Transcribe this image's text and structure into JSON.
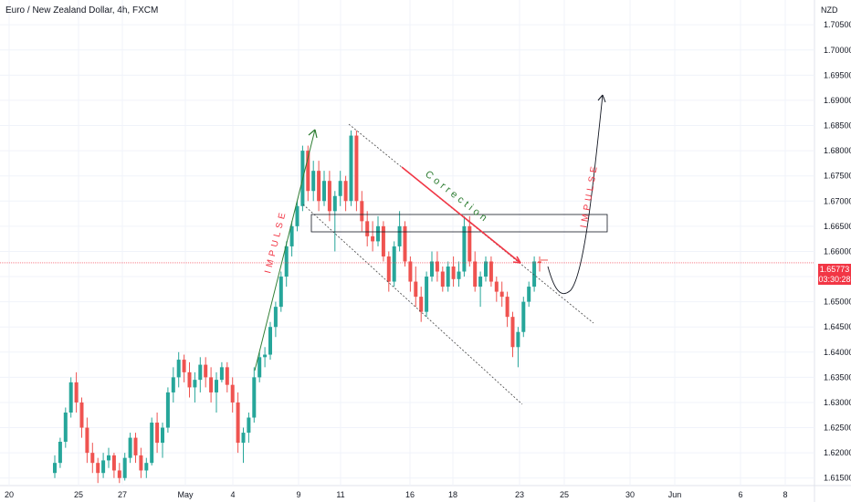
{
  "header": {
    "title": "Euro / New Zealand Dollar, 4h, FXCM"
  },
  "price_axis": {
    "currency": "NZD"
  },
  "last_price": {
    "value": "1.65773",
    "countdown": "03:30:28"
  },
  "colors": {
    "up": "#26a69a",
    "down": "#ef5350",
    "impulse_up": "#2e7d32",
    "correction": "#f23645",
    "price_line": "#f23645"
  },
  "chart_data": {
    "type": "candlestick",
    "title": "Euro / New Zealand Dollar, 4h, FXCM",
    "y_unit": "NZD",
    "ylim": [
      1.6135,
      1.7092
    ],
    "y_ticks": [
      "1.70500",
      "1.70000",
      "1.69500",
      "1.69000",
      "1.68500",
      "1.68000",
      "1.67500",
      "1.67000",
      "1.66500",
      "1.66000",
      "1.65500",
      "1.65000",
      "1.64500",
      "1.64000",
      "1.63500",
      "1.63000",
      "1.62500",
      "1.62000",
      "1.61500"
    ],
    "x_ticks": [
      "20",
      "25",
      "27",
      "May",
      "4",
      "9",
      "11",
      "16",
      "18",
      "23",
      "25",
      "30",
      "Jun",
      "6",
      "8"
    ],
    "candles": [
      [
        1.616,
        1.6195,
        1.615,
        1.618
      ],
      [
        1.618,
        1.623,
        1.617,
        1.6222
      ],
      [
        1.6222,
        1.629,
        1.621,
        1.628
      ],
      [
        1.628,
        1.635,
        1.627,
        1.634
      ],
      [
        1.634,
        1.636,
        1.628,
        1.63
      ],
      [
        1.63,
        1.631,
        1.623,
        1.625
      ],
      [
        1.625,
        1.627,
        1.618,
        1.62
      ],
      [
        1.62,
        1.622,
        1.616,
        1.618
      ],
      [
        1.618,
        1.619,
        1.614,
        1.616
      ],
      [
        1.616,
        1.62,
        1.615,
        1.6185
      ],
      [
        1.6185,
        1.621,
        1.617,
        1.6195
      ],
      [
        1.6195,
        1.62,
        1.615,
        1.6165
      ],
      [
        1.6165,
        1.618,
        1.614,
        1.615
      ],
      [
        1.615,
        1.62,
        1.6145,
        1.619
      ],
      [
        1.619,
        1.624,
        1.618,
        1.623
      ],
      [
        1.623,
        1.624,
        1.618,
        1.6195
      ],
      [
        1.6195,
        1.621,
        1.615,
        1.6165
      ],
      [
        1.6165,
        1.619,
        1.615,
        1.618
      ],
      [
        1.618,
        1.627,
        1.6175,
        1.626
      ],
      [
        1.626,
        1.628,
        1.62,
        1.622
      ],
      [
        1.622,
        1.626,
        1.619,
        1.625
      ],
      [
        1.625,
        1.633,
        1.624,
        1.632
      ],
      [
        1.632,
        1.637,
        1.63,
        1.635
      ],
      [
        1.635,
        1.64,
        1.633,
        1.6385
      ],
      [
        1.6385,
        1.6395,
        1.634,
        1.636
      ],
      [
        1.636,
        1.638,
        1.631,
        1.633
      ],
      [
        1.633,
        1.636,
        1.63,
        1.6345
      ],
      [
        1.6345,
        1.639,
        1.632,
        1.6375
      ],
      [
        1.6375,
        1.639,
        1.633,
        1.635
      ],
      [
        1.635,
        1.637,
        1.63,
        1.632
      ],
      [
        1.632,
        1.636,
        1.628,
        1.6345
      ],
      [
        1.6345,
        1.638,
        1.634,
        1.637
      ],
      [
        1.637,
        1.638,
        1.632,
        1.6335
      ],
      [
        1.6335,
        1.635,
        1.628,
        1.63
      ],
      [
        1.63,
        1.632,
        1.62,
        1.622
      ],
      [
        1.622,
        1.625,
        1.618,
        1.624
      ],
      [
        1.624,
        1.628,
        1.622,
        1.627
      ],
      [
        1.627,
        1.637,
        1.626,
        1.635
      ],
      [
        1.635,
        1.64,
        1.634,
        1.639
      ],
      [
        1.639,
        1.641,
        1.637,
        1.6395
      ],
      [
        1.6395,
        1.646,
        1.6385,
        1.645
      ],
      [
        1.645,
        1.65,
        1.643,
        1.649
      ],
      [
        1.649,
        1.656,
        1.648,
        1.655
      ],
      [
        1.655,
        1.662,
        1.653,
        1.661
      ],
      [
        1.661,
        1.666,
        1.659,
        1.665
      ],
      [
        1.665,
        1.67,
        1.664,
        1.669
      ],
      [
        1.669,
        1.681,
        1.668,
        1.68
      ],
      [
        1.68,
        1.681,
        1.67,
        1.672
      ],
      [
        1.672,
        1.678,
        1.67,
        1.676
      ],
      [
        1.676,
        1.678,
        1.668,
        1.67
      ],
      [
        1.67,
        1.676,
        1.669,
        1.674
      ],
      [
        1.674,
        1.676,
        1.666,
        1.668
      ],
      [
        1.668,
        1.672,
        1.66,
        1.671
      ],
      [
        1.671,
        1.676,
        1.669,
        1.674
      ],
      [
        1.674,
        1.675,
        1.668,
        1.67
      ],
      [
        1.67,
        1.684,
        1.669,
        1.683
      ],
      [
        1.683,
        1.684,
        1.668,
        1.67
      ],
      [
        1.67,
        1.672,
        1.664,
        1.666
      ],
      [
        1.666,
        1.668,
        1.661,
        1.663
      ],
      [
        1.663,
        1.666,
        1.66,
        1.662
      ],
      [
        1.662,
        1.667,
        1.661,
        1.665
      ],
      [
        1.665,
        1.666,
        1.658,
        1.659
      ],
      [
        1.659,
        1.66,
        1.652,
        1.654
      ],
      [
        1.654,
        1.662,
        1.653,
        1.661
      ],
      [
        1.661,
        1.668,
        1.66,
        1.665
      ],
      [
        1.665,
        1.666,
        1.657,
        1.658
      ],
      [
        1.658,
        1.659,
        1.652,
        1.654
      ],
      [
        1.654,
        1.657,
        1.649,
        1.651
      ],
      [
        1.651,
        1.653,
        1.646,
        1.648
      ],
      [
        1.648,
        1.656,
        1.647,
        1.655
      ],
      [
        1.655,
        1.66,
        1.654,
        1.658
      ],
      [
        1.658,
        1.66,
        1.654,
        1.656
      ],
      [
        1.656,
        1.657,
        1.652,
        1.653
      ],
      [
        1.653,
        1.658,
        1.652,
        1.657
      ],
      [
        1.657,
        1.659,
        1.653,
        1.6545
      ],
      [
        1.6545,
        1.658,
        1.653,
        1.656
      ],
      [
        1.656,
        1.667,
        1.655,
        1.665
      ],
      [
        1.665,
        1.667,
        1.657,
        1.658
      ],
      [
        1.658,
        1.66,
        1.652,
        1.653
      ],
      [
        1.653,
        1.656,
        1.649,
        1.655
      ],
      [
        1.655,
        1.659,
        1.654,
        1.658
      ],
      [
        1.658,
        1.659,
        1.653,
        1.654
      ],
      [
        1.654,
        1.655,
        1.65,
        1.652
      ],
      [
        1.652,
        1.654,
        1.649,
        1.651
      ],
      [
        1.651,
        1.652,
        1.645,
        1.647
      ],
      [
        1.647,
        1.648,
        1.639,
        1.641
      ],
      [
        1.641,
        1.645,
        1.637,
        1.644
      ],
      [
        1.644,
        1.651,
        1.643,
        1.65
      ],
      [
        1.65,
        1.654,
        1.649,
        1.653
      ],
      [
        1.653,
        1.659,
        1.652,
        1.658
      ],
      [
        1.658,
        1.659,
        1.656,
        1.6577
      ]
    ],
    "annotations": [
      {
        "text": "IMPULSE",
        "kind": "arrow-up"
      },
      {
        "text": "Correction",
        "kind": "arrow-down"
      },
      {
        "text": "IMPULSE",
        "kind": "projection"
      }
    ]
  }
}
